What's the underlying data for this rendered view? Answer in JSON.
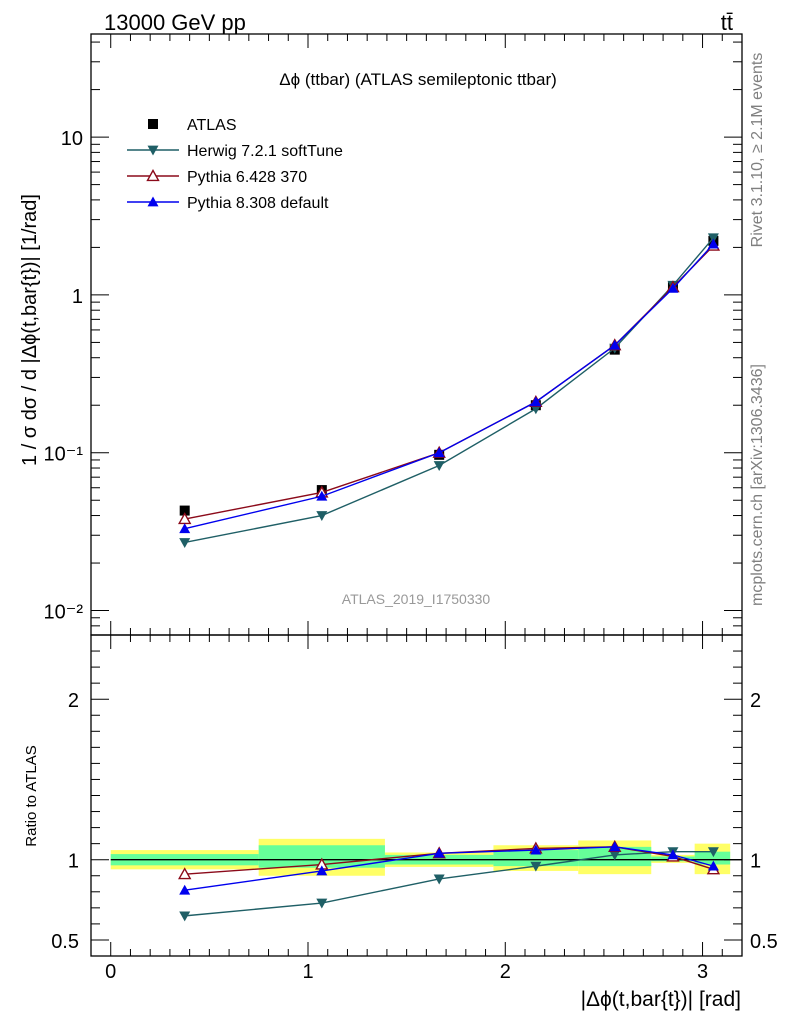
{
  "header": {
    "left": "13000 GeV pp",
    "right": "tt̄"
  },
  "side_labels": {
    "top": "Rivet 3.1.10, ≥ 2.1M events",
    "bottom": "mcplots.cern.ch [arXiv:1306.3436]"
  },
  "chart_data": [
    {
      "type": "line",
      "title": "Δϕ (ttbar) (ATLAS semileptonic ttbar)",
      "watermark": "ATLAS_2019_I1750330",
      "ylabel": "1 / σ dσ / d |Δϕ(t,bar{t})| [1/rad]",
      "yscale": "log",
      "ylim": [
        0.007,
        45
      ],
      "xlim": [
        -0.1,
        3.2
      ],
      "yticks": [
        {
          "value": 0.01,
          "label": "10⁻²"
        },
        {
          "value": 0.1,
          "label": "10⁻¹"
        },
        {
          "value": 1,
          "label": "1"
        },
        {
          "value": 10,
          "label": "10"
        }
      ],
      "legend_position": "top-left",
      "x": [
        0.375,
        1.07,
        1.665,
        2.155,
        2.555,
        2.85,
        3.055
      ],
      "series": [
        {
          "name": "ATLAS",
          "color": "#000000",
          "marker": "square",
          "line": false,
          "values": [
            0.043,
            0.058,
            0.097,
            0.2,
            0.45,
            1.12,
            2.2
          ]
        },
        {
          "name": "Herwig 7.2.1 softTune",
          "color": "#1f5f66",
          "marker": "triangle-down",
          "line": true,
          "values": [
            0.027,
            0.04,
            0.083,
            0.19,
            0.46,
            1.15,
            2.3
          ]
        },
        {
          "name": "Pythia 6.428 370",
          "color": "#8b0a1a",
          "marker": "triangle-up-open",
          "line": true,
          "values": [
            0.038,
            0.056,
            0.1,
            0.21,
            0.48,
            1.12,
            2.05
          ]
        },
        {
          "name": "Pythia 8.308 default",
          "color": "#0000ee",
          "marker": "triangle-up",
          "line": true,
          "values": [
            0.033,
            0.053,
            0.1,
            0.21,
            0.48,
            1.1,
            2.1
          ]
        }
      ]
    },
    {
      "type": "line",
      "ylabel": "Ratio to ATLAS",
      "xlabel": "|Δϕ(t,bar{t})| [rad]",
      "ylim": [
        0.4,
        2.4
      ],
      "xlim": [
        -0.1,
        3.2
      ],
      "yticks": [
        {
          "value": 0.5,
          "label": "0.5"
        },
        {
          "value": 1,
          "label": "1"
        },
        {
          "value": 2,
          "label": "2"
        }
      ],
      "xticks": [
        {
          "value": 0,
          "label": "0"
        },
        {
          "value": 1,
          "label": "1"
        },
        {
          "value": 2,
          "label": "2"
        },
        {
          "value": 3,
          "label": "3"
        }
      ],
      "bands": {
        "inner_color": "#66ff99",
        "outer_color": "#ffff66",
        "bins": [
          {
            "x0": 0.0,
            "x1": 0.75,
            "inner": [
              0.965,
              1.035
            ],
            "outer": [
              0.94,
              1.06
            ]
          },
          {
            "x0": 0.75,
            "x1": 1.39,
            "inner": [
              0.95,
              1.09
            ],
            "outer": [
              0.9,
              1.13
            ]
          },
          {
            "x0": 1.39,
            "x1": 1.94,
            "inner": [
              0.97,
              1.03
            ],
            "outer": [
              0.955,
              1.045
            ]
          },
          {
            "x0": 1.94,
            "x1": 2.37,
            "inner": [
              0.96,
              1.06
            ],
            "outer": [
              0.93,
              1.09
            ]
          },
          {
            "x0": 2.37,
            "x1": 2.74,
            "inner": [
              0.96,
              1.08
            ],
            "outer": [
              0.91,
              1.12
            ]
          },
          {
            "x0": 2.74,
            "x1": 2.96,
            "inner": [
              0.99,
              1.02
            ],
            "outer": [
              0.98,
              1.03
            ]
          },
          {
            "x0": 2.96,
            "x1": 3.14,
            "inner": [
              0.97,
              1.05
            ],
            "outer": [
              0.91,
              1.1
            ]
          }
        ]
      },
      "x": [
        0.375,
        1.07,
        1.665,
        2.155,
        2.555,
        2.85,
        3.055
      ],
      "series": [
        {
          "name": "Herwig 7.2.1 softTune",
          "color": "#1f5f66",
          "marker": "triangle-down",
          "values": [
            0.65,
            0.73,
            0.88,
            0.96,
            1.03,
            1.05,
            1.05
          ]
        },
        {
          "name": "Pythia 6.428 370",
          "color": "#8b0a1a",
          "marker": "triangle-up-open",
          "values": [
            0.91,
            0.97,
            1.04,
            1.07,
            1.08,
            1.02,
            0.94
          ]
        },
        {
          "name": "Pythia 8.308 default",
          "color": "#0000ee",
          "marker": "triangle-up",
          "values": [
            0.81,
            0.93,
            1.04,
            1.06,
            1.08,
            1.03,
            0.96
          ]
        }
      ]
    }
  ]
}
